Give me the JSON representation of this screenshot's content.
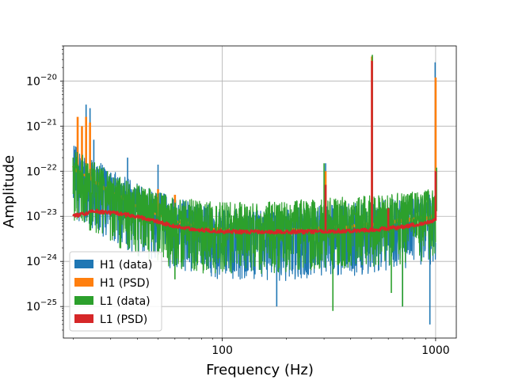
{
  "chart_data": {
    "type": "line",
    "title": "",
    "xlabel": "Frequency (Hz)",
    "ylabel": "Amplitude",
    "x_scale": "log",
    "y_scale": "log",
    "xlim": [
      18,
      1250
    ],
    "ylim": [
      2e-26,
      6e-20
    ],
    "grid": true,
    "legend_position": "lower-left",
    "x_ticks": [
      {
        "value": 100,
        "label": "100"
      },
      {
        "value": 1000,
        "label": "1000"
      }
    ],
    "y_ticks": [
      {
        "value": 1e-25,
        "base": "10",
        "exp": "−25"
      },
      {
        "value": 1e-24,
        "base": "10",
        "exp": "−24"
      },
      {
        "value": 1e-23,
        "base": "10",
        "exp": "−23"
      },
      {
        "value": 1e-22,
        "base": "10",
        "exp": "−22"
      },
      {
        "value": 1e-21,
        "base": "10",
        "exp": "−21"
      },
      {
        "value": 1e-20,
        "base": "10",
        "exp": "−20"
      }
    ],
    "series": [
      {
        "name": "H1 (data)",
        "color": "#1f77b4",
        "kind": "data",
        "baseline": [
          [
            20,
            1.2e-22
          ],
          [
            25,
            6e-23
          ],
          [
            30,
            3.5e-23
          ],
          [
            40,
            1.7e-23
          ],
          [
            60,
            8e-24
          ],
          [
            80,
            6e-24
          ],
          [
            100,
            5e-24
          ],
          [
            150,
            4.7e-24
          ],
          [
            200,
            4.7e-24
          ],
          [
            300,
            5.5e-24
          ],
          [
            500,
            6.5e-24
          ],
          [
            700,
            8e-24
          ],
          [
            1000,
            1e-23
          ]
        ],
        "lines": [
          [
            21,
            4e-22
          ],
          [
            22,
            6e-22
          ],
          [
            23,
            3e-21
          ],
          [
            24,
            2.5e-21
          ],
          [
            25,
            5e-22
          ],
          [
            36,
            2e-22
          ],
          [
            50,
            1.4e-22
          ],
          [
            180,
            1e-25
          ],
          [
            305,
            1.5e-22
          ],
          [
            503,
            3e-21
          ],
          [
            700,
            1e-25
          ],
          [
            940,
            4e-26
          ],
          [
            995,
            2.6e-20
          ]
        ]
      },
      {
        "name": "H1 (PSD)",
        "color": "#ff7f0e",
        "kind": "psd",
        "baseline": [
          [
            20,
            1.2e-22
          ],
          [
            25,
            6e-23
          ],
          [
            30,
            3.5e-23
          ],
          [
            40,
            1.7e-23
          ],
          [
            60,
            8e-24
          ],
          [
            80,
            6e-24
          ],
          [
            100,
            5e-24
          ],
          [
            150,
            4.7e-24
          ],
          [
            200,
            4.7e-24
          ],
          [
            300,
            5.5e-24
          ],
          [
            500,
            6.5e-24
          ],
          [
            700,
            8e-24
          ],
          [
            1000,
            1e-23
          ]
        ],
        "lines": [
          [
            21,
            1.6e-21
          ],
          [
            22,
            1e-21
          ],
          [
            23,
            1.6e-21
          ],
          [
            24,
            1.2e-21
          ],
          [
            36,
            3e-23
          ],
          [
            50,
            4e-23
          ],
          [
            60,
            3e-23
          ],
          [
            305,
            1e-22
          ],
          [
            503,
            3.5e-20
          ],
          [
            1000,
            1.2e-20
          ]
        ]
      },
      {
        "name": "L1 (data)",
        "color": "#2ca02c",
        "kind": "data",
        "baseline": [
          [
            20,
            1e-22
          ],
          [
            25,
            5e-23
          ],
          [
            30,
            3e-23
          ],
          [
            40,
            1.6e-23
          ],
          [
            60,
            8.5e-24
          ],
          [
            80,
            7e-24
          ],
          [
            100,
            6.5e-24
          ],
          [
            150,
            6.5e-24
          ],
          [
            200,
            7e-24
          ],
          [
            300,
            8e-24
          ],
          [
            500,
            9.5e-24
          ],
          [
            700,
            1.1e-23
          ],
          [
            1000,
            1.3e-23
          ]
        ],
        "lines": [
          [
            20,
            2e-22
          ],
          [
            22,
            1.7e-22
          ],
          [
            26,
            8e-23
          ],
          [
            30,
            6e-23
          ],
          [
            60,
            4e-25
          ],
          [
            300,
            1.5e-22
          ],
          [
            330,
            8e-26
          ],
          [
            505,
            3.8e-20
          ],
          [
            620,
            2e-25
          ],
          [
            700,
            1e-25
          ],
          [
            1010,
            1.2e-22
          ]
        ]
      },
      {
        "name": "L1 (PSD)",
        "color": "#d62728",
        "kind": "psd",
        "baseline": [
          [
            20,
            1e-23
          ],
          [
            25,
            1.3e-23
          ],
          [
            30,
            1.2e-23
          ],
          [
            40,
            1e-23
          ],
          [
            60,
            6e-24
          ],
          [
            80,
            5e-24
          ],
          [
            100,
            4.6e-24
          ],
          [
            150,
            4.5e-24
          ],
          [
            200,
            4.5e-24
          ],
          [
            300,
            4.6e-24
          ],
          [
            500,
            5e-24
          ],
          [
            700,
            5.8e-24
          ],
          [
            1000,
            8e-24
          ]
        ],
        "lines": [
          [
            305,
            5e-23
          ],
          [
            503,
            2.8e-20
          ],
          [
            600,
            1.5e-23
          ],
          [
            1000,
            1e-22
          ]
        ]
      }
    ]
  }
}
